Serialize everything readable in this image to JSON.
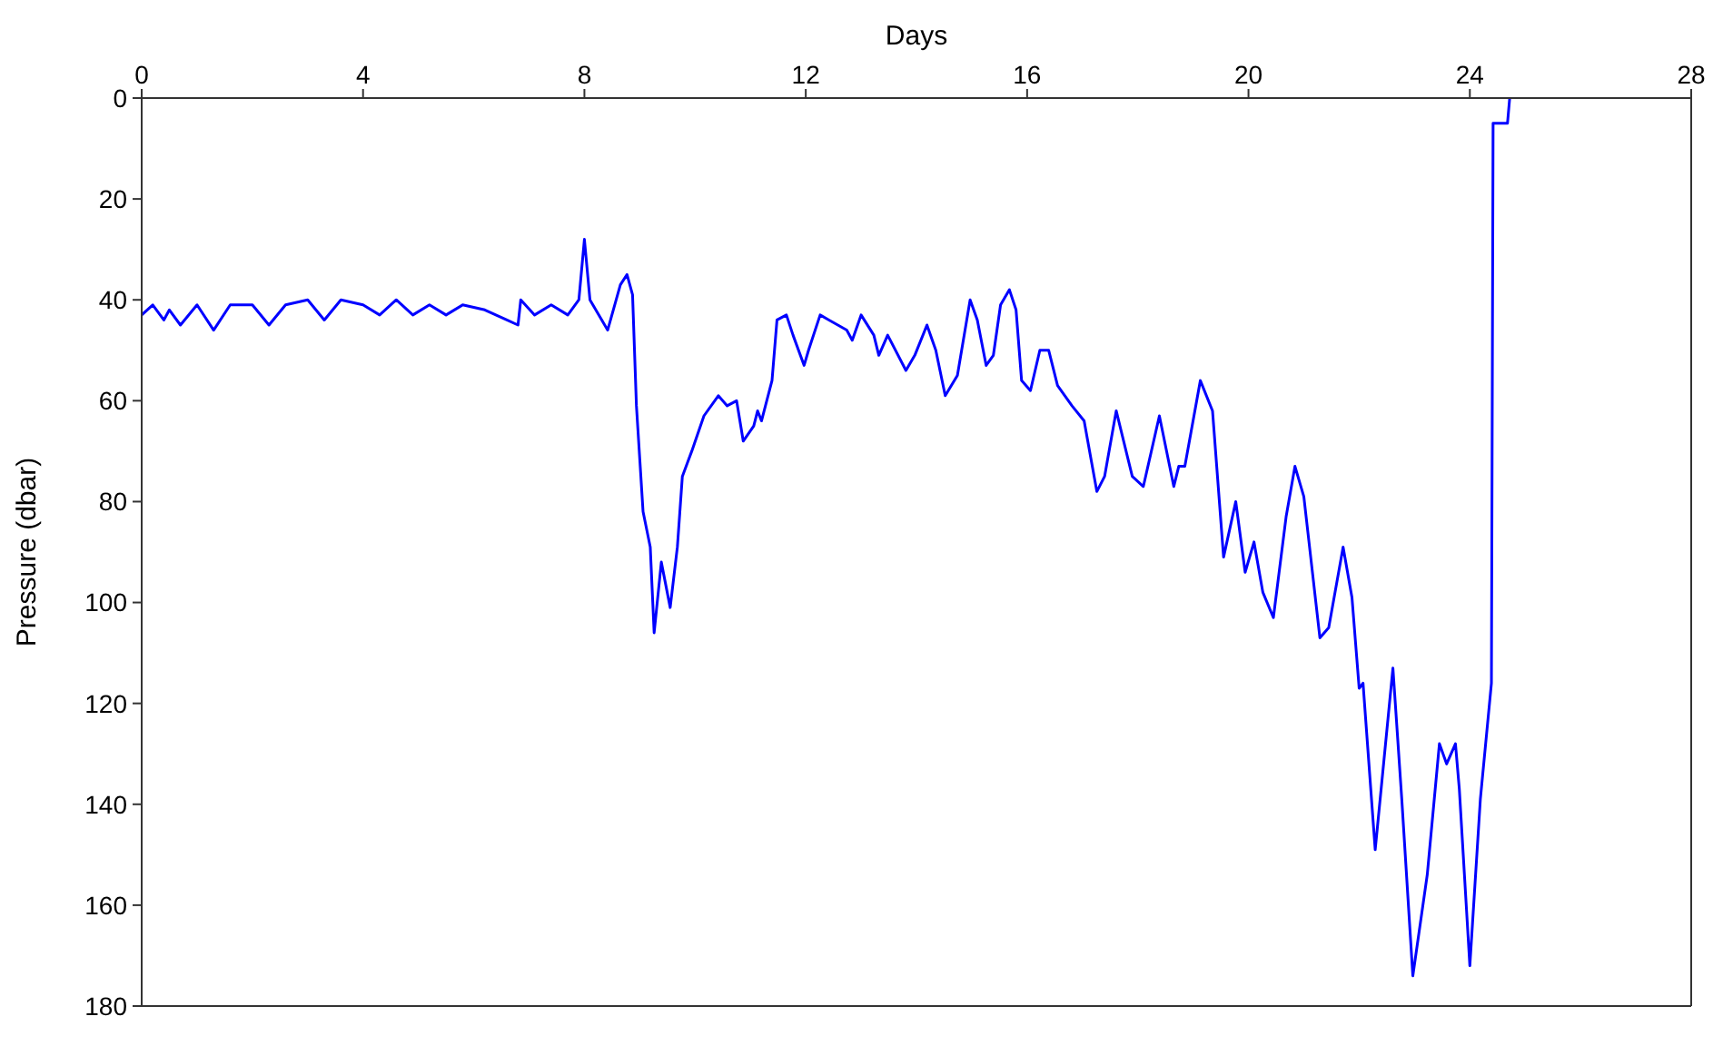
{
  "chart_data": {
    "type": "line",
    "xlabel": "Days",
    "ylabel": "Pressure (dbar)",
    "xlim": [
      0,
      28
    ],
    "xticks": [
      0,
      4,
      8,
      12,
      16,
      20,
      24,
      28
    ],
    "ylim": [
      180,
      0
    ],
    "yticks": [
      0,
      20,
      40,
      60,
      80,
      100,
      120,
      140,
      160,
      180
    ],
    "marker": "none",
    "line_style": "solid",
    "series": [
      {
        "color": "#0000ff",
        "x": [
          0,
          0.2,
          0.4,
          0.5,
          0.7,
          1,
          1.3,
          1.6,
          2,
          2.3,
          2.6,
          3,
          3.3,
          3.6,
          4,
          4.3,
          4.6,
          4.9,
          5.2,
          5.5,
          5.8,
          6.2,
          6.6,
          6.8,
          6.85,
          7.1,
          7.4,
          7.7,
          7.9,
          8.0,
          8.1,
          8.42,
          8.65,
          8.77,
          8.87,
          8.94,
          9.06,
          9.19,
          9.26,
          9.39,
          9.55,
          9.68,
          9.77,
          9.94,
          10.16,
          10.42,
          10.58,
          10.75,
          10.87,
          11.06,
          11.13,
          11.2,
          11.39,
          11.48,
          11.65,
          11.77,
          11.97,
          12.05,
          12.26,
          12.42,
          12.74,
          12.84,
          13.0,
          13.23,
          13.32,
          13.48,
          13.81,
          13.97,
          14.19,
          14.35,
          14.52,
          14.74,
          14.97,
          15.1,
          15.26,
          15.39,
          15.52,
          15.68,
          15.8,
          15.9,
          16.06,
          16.23,
          16.39,
          16.55,
          16.81,
          17.03,
          17.26,
          17.4,
          17.61,
          17.9,
          18.1,
          18.39,
          18.65,
          18.74,
          18.85,
          19.13,
          19.35,
          19.55,
          19.77,
          19.94,
          20.1,
          20.26,
          20.45,
          20.68,
          20.84,
          21.0,
          21.29,
          21.45,
          21.71,
          21.87,
          22.0,
          22.07,
          22.29,
          22.61,
          22.77,
          22.97,
          23.23,
          23.45,
          23.58,
          23.74,
          23.81,
          24.0,
          24.19,
          24.39,
          24.42,
          24.68,
          24.72
        ],
        "values": [
          43,
          41,
          44,
          42,
          45,
          41,
          46,
          41,
          41,
          45,
          41,
          40,
          44,
          40,
          41,
          43,
          40,
          43,
          41,
          43,
          41,
          42,
          44,
          45,
          40,
          43,
          41,
          43,
          40,
          28,
          40,
          46,
          37,
          35,
          39,
          61,
          82,
          89,
          106,
          92,
          101,
          89,
          75,
          70,
          63,
          59,
          61,
          60,
          68,
          65,
          62,
          64,
          56,
          44,
          43,
          47,
          53,
          50,
          43,
          44,
          46,
          48,
          43,
          47,
          51,
          47,
          54,
          51,
          45,
          50,
          59,
          55,
          40,
          44,
          53,
          51,
          41,
          38,
          42,
          56,
          58,
          50,
          50,
          57,
          61,
          64,
          78,
          75,
          62,
          75,
          77,
          63,
          77,
          73,
          73,
          56,
          62,
          91,
          80,
          94,
          88,
          98,
          103,
          83,
          73,
          79,
          107,
          105,
          89,
          99,
          117,
          116,
          149,
          113,
          139,
          174,
          154,
          128,
          132,
          128,
          137,
          172,
          139,
          116,
          5,
          5,
          0
        ]
      }
    ]
  }
}
